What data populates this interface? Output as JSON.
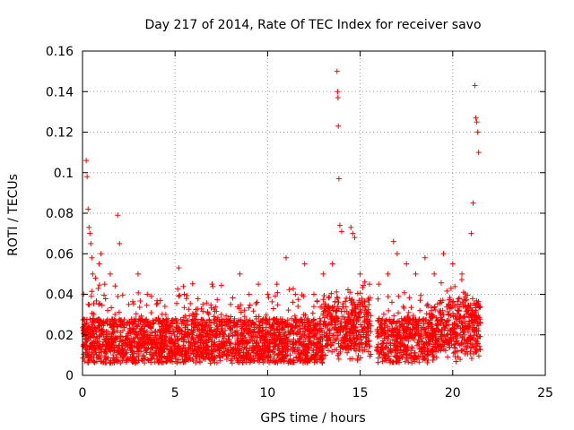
{
  "chart_data": {
    "type": "scatter",
    "title": "Day 217 of 2014, Rate Of TEC Index for receiver savo",
    "xlabel": "GPS time / hours",
    "ylabel": "ROTI / TECUs",
    "xlim": [
      0,
      25
    ],
    "ylim": [
      0,
      0.16
    ],
    "xticks": [
      0,
      5,
      10,
      15,
      20,
      25
    ],
    "xtick_labels": [
      "0",
      "5",
      "10",
      "15",
      "20",
      "25"
    ],
    "yticks": [
      0,
      0.02,
      0.04,
      0.06,
      0.08,
      0.1,
      0.12,
      0.14,
      0.16
    ],
    "ytick_labels": [
      "0",
      "0.02",
      "0.04",
      "0.06",
      "0.08",
      "0.1",
      "0.12",
      "0.14",
      "0.16"
    ],
    "grid": true,
    "marker": "plus",
    "color": "#ff0000",
    "series": [
      {
        "name": "ROTI",
        "note": "dense scatter of ~0.005-0.04 TECU/min across 0-21.5 h; notable peaks listed",
        "x": [
          0.2,
          0.25,
          0.3,
          0.35,
          0.4,
          0.45,
          0.5,
          0.55,
          0.7,
          0.9,
          1.0,
          1.2,
          1.5,
          1.9,
          2.0,
          2.5,
          3.0,
          3.5,
          4.0,
          4.5,
          5.2,
          5.5,
          6.0,
          6.5,
          7.0,
          7.5,
          8.0,
          8.5,
          9.0,
          9.5,
          10.0,
          10.5,
          11.0,
          11.5,
          12.0,
          12.5,
          13.0,
          13.5,
          13.75,
          13.78,
          13.8,
          13.82,
          13.85,
          13.9,
          14.0,
          14.5,
          14.6,
          14.7,
          15.0,
          15.5,
          16.0,
          16.5,
          16.8,
          17.0,
          17.5,
          18.0,
          18.5,
          19.0,
          19.5,
          20.0,
          20.5,
          21.0,
          21.1,
          21.2,
          21.25,
          21.3,
          21.35,
          21.4
        ],
        "y": [
          0.106,
          0.098,
          0.082,
          0.073,
          0.07,
          0.065,
          0.058,
          0.05,
          0.048,
          0.055,
          0.06,
          0.045,
          0.05,
          0.079,
          0.065,
          0.035,
          0.05,
          0.04,
          0.035,
          0.03,
          0.053,
          0.04,
          0.03,
          0.035,
          0.045,
          0.03,
          0.035,
          0.05,
          0.04,
          0.045,
          0.04,
          0.045,
          0.058,
          0.04,
          0.055,
          0.04,
          0.05,
          0.055,
          0.15,
          0.14,
          0.137,
          0.123,
          0.097,
          0.074,
          0.071,
          0.073,
          0.07,
          0.068,
          0.05,
          0.045,
          0.045,
          0.05,
          0.066,
          0.06,
          0.055,
          0.05,
          0.058,
          0.05,
          0.06,
          0.055,
          0.05,
          0.07,
          0.085,
          0.143,
          0.127,
          0.125,
          0.12,
          0.11
        ]
      }
    ]
  }
}
